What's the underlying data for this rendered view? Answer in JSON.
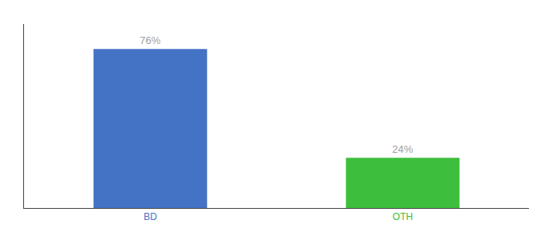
{
  "chart_data": {
    "type": "bar",
    "categories": [
      "BD",
      "OTH"
    ],
    "values": [
      76,
      24
    ],
    "value_labels": [
      "76%",
      "24%"
    ],
    "colors": [
      "#4472c4",
      "#3dbf3d"
    ],
    "ylim": [
      0,
      88
    ],
    "yticks": [],
    "tick_labels": "x",
    "data_labels": true,
    "grid": false
  }
}
